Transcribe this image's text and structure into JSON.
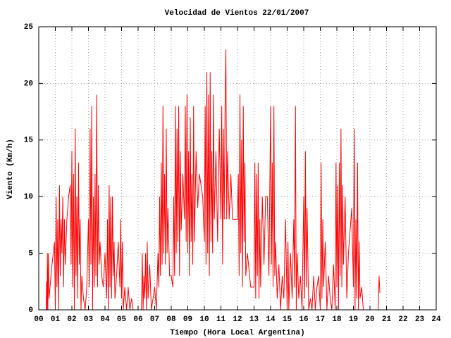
{
  "chart_data": {
    "type": "line",
    "title": "Velocidad de Vientos 22/01/2007",
    "xlabel": "Tiempo (Hora Local Argentina)",
    "ylabel": "Viento (Km/h)",
    "grid": true,
    "xlim": [
      0,
      24
    ],
    "ylim": [
      0,
      25
    ],
    "xticks": [
      {
        "value": 0,
        "label": "00"
      },
      {
        "value": 1,
        "label": "01"
      },
      {
        "value": 2,
        "label": "02"
      },
      {
        "value": 3,
        "label": "03"
      },
      {
        "value": 4,
        "label": "04"
      },
      {
        "value": 5,
        "label": "05"
      },
      {
        "value": 6,
        "label": "06"
      },
      {
        "value": 7,
        "label": "07"
      },
      {
        "value": 8,
        "label": "08"
      },
      {
        "value": 9,
        "label": "09"
      },
      {
        "value": 10,
        "label": "10"
      },
      {
        "value": 11,
        "label": "11"
      },
      {
        "value": 12,
        "label": "12"
      },
      {
        "value": 13,
        "label": "13"
      },
      {
        "value": 14,
        "label": "14"
      },
      {
        "value": 15,
        "label": "15"
      },
      {
        "value": 16,
        "label": "16"
      },
      {
        "value": 17,
        "label": "17"
      },
      {
        "value": 18,
        "label": "18"
      },
      {
        "value": 19,
        "label": "19"
      },
      {
        "value": 20,
        "label": "20"
      },
      {
        "value": 21,
        "label": "21"
      },
      {
        "value": 22,
        "label": "22"
      },
      {
        "value": 23,
        "label": "23"
      },
      {
        "value": 24,
        "label": "24"
      }
    ],
    "yticks": [
      0,
      5,
      10,
      15,
      20,
      25
    ],
    "x": [
      0.45,
      0.47,
      0.5,
      0.52,
      0.55,
      0.58,
      0.62,
      0.8,
      0.95,
      1.0,
      1.05,
      1.1,
      1.15,
      1.2,
      1.25,
      1.3,
      1.35,
      1.4,
      1.45,
      1.5,
      1.55,
      1.6,
      1.7,
      1.8,
      1.9,
      1.95,
      2.0,
      2.05,
      2.1,
      2.15,
      2.2,
      2.25,
      2.3,
      2.35,
      2.4,
      2.45,
      2.5,
      2.55,
      2.6,
      2.7,
      2.8,
      2.9,
      3.0,
      3.05,
      3.1,
      3.15,
      3.2,
      3.25,
      3.3,
      3.35,
      3.4,
      3.45,
      3.5,
      3.55,
      3.6,
      3.65,
      3.7,
      3.8,
      3.9,
      4.0,
      4.1,
      4.15,
      4.2,
      4.25,
      4.3,
      4.35,
      4.4,
      4.45,
      4.5,
      4.55,
      4.6,
      4.7,
      4.8,
      4.9,
      4.95,
      5.0,
      5.05,
      5.1,
      5.2,
      5.3,
      5.4,
      5.5,
      5.6,
      5.7,
      6.0,
      6.2,
      6.25,
      6.3,
      6.35,
      6.4,
      6.45,
      6.5,
      6.55,
      6.6,
      6.7,
      6.8,
      7.0,
      7.1,
      7.2,
      7.25,
      7.3,
      7.35,
      7.4,
      7.45,
      7.5,
      7.55,
      7.6,
      7.65,
      7.7,
      7.75,
      7.8,
      7.9,
      8.0,
      8.1,
      8.15,
      8.2,
      8.25,
      8.3,
      8.35,
      8.4,
      8.45,
      8.5,
      8.55,
      8.6,
      8.7,
      8.8,
      8.85,
      8.9,
      8.95,
      9.0,
      9.05,
      9.1,
      9.15,
      9.2,
      9.25,
      9.3,
      9.35,
      9.4,
      9.5,
      9.6,
      9.7,
      9.8,
      9.9,
      10.0,
      10.05,
      10.1,
      10.15,
      10.2,
      10.25,
      10.3,
      10.35,
      10.4,
      10.45,
      10.5,
      10.55,
      10.6,
      10.7,
      10.8,
      10.9,
      11.0,
      11.05,
      11.1,
      11.15,
      11.2,
      11.25,
      11.3,
      11.35,
      11.4,
      11.5,
      11.6,
      11.7,
      12.0,
      12.05,
      12.1,
      12.15,
      12.2,
      12.25,
      12.3,
      12.35,
      12.4,
      12.45,
      12.5,
      12.6,
      12.8,
      13.0,
      13.05,
      13.1,
      13.15,
      13.2,
      13.25,
      13.3,
      13.35,
      13.4,
      13.5,
      13.6,
      13.7,
      13.8,
      13.9,
      14.0,
      14.05,
      14.1,
      14.15,
      14.2,
      14.25,
      14.3,
      14.4,
      14.5,
      14.6,
      14.7,
      14.8,
      14.9,
      15.0,
      15.05,
      15.1,
      15.2,
      15.3,
      15.4,
      15.45,
      15.5,
      15.55,
      15.6,
      15.7,
      15.8,
      15.9,
      16.0,
      16.05,
      16.1,
      16.15,
      16.2,
      16.3,
      16.4,
      16.5,
      16.6,
      16.7,
      16.8,
      16.9,
      17.0,
      17.05,
      17.1,
      17.15,
      17.2,
      17.3,
      17.4,
      17.5,
      17.6,
      17.7,
      17.8,
      17.9,
      17.95,
      18.0,
      18.05,
      18.1,
      18.15,
      18.2,
      18.25,
      18.3,
      18.35,
      18.4,
      18.5,
      18.6,
      18.7,
      18.8,
      18.9,
      19.0,
      19.05,
      19.1,
      19.15,
      19.2,
      19.25,
      19.3,
      19.35,
      19.4,
      19.5,
      19.6,
      20.0,
      20.5,
      20.55,
      20.6
    ],
    "series": [
      {
        "color": "#ff0000",
        "values": [
          0,
          2.5,
          0,
          5,
          0,
          5,
          1,
          4,
          6,
          0,
          10,
          2,
          8,
          0,
          11,
          3,
          8,
          5,
          10,
          2,
          8,
          4,
          8,
          10,
          11,
          4,
          14,
          2,
          12,
          0,
          16,
          3,
          10,
          1,
          13,
          4,
          8,
          0,
          3,
          1,
          0,
          2,
          8,
          2,
          16,
          4,
          18,
          0,
          10,
          2,
          12,
          3,
          19,
          2,
          11,
          4,
          6,
          3,
          2,
          5,
          1,
          8,
          0,
          11,
          2,
          10,
          1,
          10,
          3,
          6,
          1,
          3,
          6,
          2,
          8,
          1,
          6,
          0,
          2,
          0,
          2,
          0,
          1,
          0,
          0,
          0,
          5,
          0,
          3,
          1,
          5,
          0,
          6,
          1,
          4,
          0,
          2,
          0,
          5,
          2,
          10,
          3,
          13,
          4,
          18,
          5,
          12,
          4,
          16,
          5,
          9,
          3,
          3,
          2,
          10,
          3,
          18,
          5,
          16,
          6,
          18,
          3,
          14,
          7,
          12,
          8,
          18,
          6,
          19,
          5,
          14,
          3,
          17,
          6,
          12,
          4,
          18,
          6,
          14,
          9,
          12,
          11,
          10,
          6,
          18,
          4,
          21,
          5,
          19,
          3,
          21,
          6,
          14,
          5,
          19,
          8,
          14,
          6,
          16,
          8,
          18,
          4,
          16,
          8,
          18,
          23,
          8,
          14,
          8,
          12,
          8,
          8,
          12,
          3,
          19,
          5,
          15,
          2,
          18,
          6,
          13,
          3,
          5,
          2,
          2,
          13,
          1,
          12,
          3,
          13,
          1,
          8,
          2,
          10,
          4,
          10,
          10,
          3,
          18,
          4,
          13,
          2,
          18,
          3,
          6,
          1,
          4,
          0,
          3,
          1,
          8,
          0,
          6,
          0,
          5,
          1,
          8,
          2,
          18,
          0,
          5,
          1,
          3,
          0,
          10,
          1,
          14,
          2,
          9,
          0,
          1,
          0,
          3,
          0,
          2,
          3,
          0,
          13,
          1,
          8,
          2,
          6,
          0,
          3,
          1,
          0,
          4,
          0,
          13,
          2,
          11,
          0,
          13,
          3,
          16,
          2,
          11,
          4,
          10,
          1,
          5,
          7,
          9,
          2,
          16,
          0,
          8,
          1,
          13,
          0,
          6,
          1,
          2,
          0,
          0,
          0,
          3,
          1.5
        ]
      }
    ]
  }
}
